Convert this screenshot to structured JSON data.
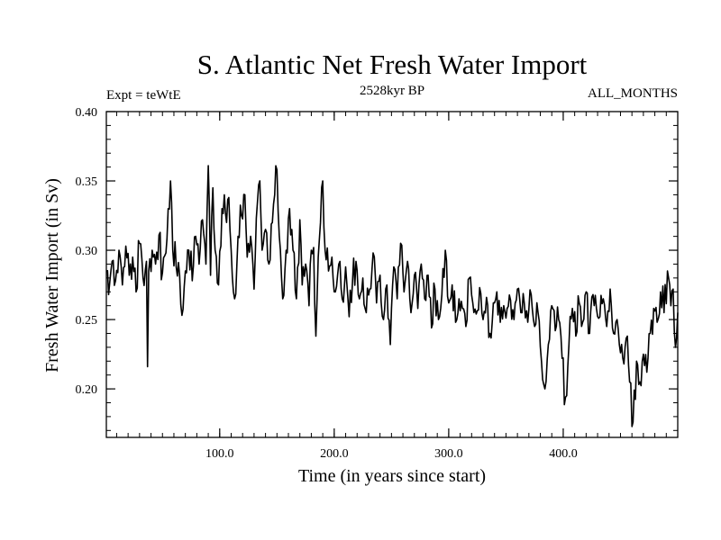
{
  "chart_data": {
    "type": "line",
    "title": "S. Atlantic Net Fresh Water Import",
    "left_note": "Expt = teWtE",
    "subtitle": "2528kyr BP",
    "right_note": "ALL_MONTHS",
    "xlabel": "Time (in years since start)",
    "ylabel": "Fresh Water Import (in Sv)",
    "xlim": [
      1,
      500
    ],
    "ylim": [
      0.165,
      0.4
    ],
    "x_ticks": [
      100,
      200,
      300,
      400
    ],
    "x_tick_labels": [
      "100.0",
      "200.0",
      "300.0",
      "400.0"
    ],
    "y_ticks": [
      0.2,
      0.25,
      0.3,
      0.35,
      0.4
    ],
    "y_tick_labels": [
      "0.20",
      "0.25",
      "0.30",
      "0.35",
      "0.40"
    ],
    "x_minor_step": 10,
    "y_minor_step": 0.01,
    "color": "#000000",
    "series": [
      {
        "name": "S. Atlantic Net Fresh Water Import",
        "x_start": 1,
        "x_step": 1,
        "anchors": [
          [
            1,
            0.285
          ],
          [
            3,
            0.268
          ],
          [
            6,
            0.292
          ],
          [
            9,
            0.278
          ],
          [
            12,
            0.3
          ],
          [
            15,
            0.275
          ],
          [
            18,
            0.303
          ],
          [
            21,
            0.282
          ],
          [
            24,
            0.295
          ],
          [
            27,
            0.27
          ],
          [
            30,
            0.305
          ],
          [
            33,
            0.28
          ],
          [
            36,
            0.292
          ],
          [
            37,
            0.216
          ],
          [
            38,
            0.285
          ],
          [
            41,
            0.3
          ],
          [
            44,
            0.29
          ],
          [
            47,
            0.311
          ],
          [
            50,
            0.284
          ],
          [
            53,
            0.298
          ],
          [
            55,
            0.33
          ],
          [
            57,
            0.35
          ],
          [
            59,
            0.3
          ],
          [
            62,
            0.288
          ],
          [
            65,
            0.282
          ],
          [
            67,
            0.253
          ],
          [
            70,
            0.285
          ],
          [
            73,
            0.3
          ],
          [
            76,
            0.278
          ],
          [
            79,
            0.31
          ],
          [
            82,
            0.29
          ],
          [
            85,
            0.322
          ],
          [
            88,
            0.29
          ],
          [
            90,
            0.361
          ],
          [
            92,
            0.282
          ],
          [
            94,
            0.345
          ],
          [
            96,
            0.3
          ],
          [
            99,
            0.275
          ],
          [
            102,
            0.33
          ],
          [
            104,
            0.34
          ],
          [
            106,
            0.32
          ],
          [
            108,
            0.338
          ],
          [
            110,
            0.3
          ],
          [
            113,
            0.265
          ],
          [
            116,
            0.31
          ],
          [
            119,
            0.325
          ],
          [
            122,
            0.34
          ],
          [
            124,
            0.295
          ],
          [
            127,
            0.31
          ],
          [
            130,
            0.272
          ],
          [
            133,
            0.335
          ],
          [
            135,
            0.35
          ],
          [
            137,
            0.3
          ],
          [
            140,
            0.315
          ],
          [
            143,
            0.29
          ],
          [
            146,
            0.32
          ],
          [
            148,
            0.34
          ],
          [
            150,
            0.358
          ],
          [
            152,
            0.31
          ],
          [
            155,
            0.265
          ],
          [
            158,
            0.3
          ],
          [
            161,
            0.33
          ],
          [
            164,
            0.3
          ],
          [
            167,
            0.265
          ],
          [
            170,
            0.322
          ],
          [
            172,
            0.275
          ],
          [
            175,
            0.29
          ],
          [
            178,
            0.26
          ],
          [
            180,
            0.3
          ],
          [
            182,
            0.302
          ],
          [
            184,
            0.238
          ],
          [
            186,
            0.295
          ],
          [
            188,
            0.32
          ],
          [
            190,
            0.35
          ],
          [
            192,
            0.3
          ],
          [
            195,
            0.285
          ],
          [
            198,
            0.295
          ],
          [
            201,
            0.27
          ],
          [
            204,
            0.29
          ],
          [
            207,
            0.265
          ],
          [
            210,
            0.288
          ],
          [
            213,
            0.252
          ],
          [
            216,
            0.278
          ],
          [
            219,
            0.292
          ],
          [
            222,
            0.265
          ],
          [
            225,
            0.28
          ],
          [
            228,
            0.255
          ],
          [
            231,
            0.272
          ],
          [
            234,
            0.298
          ],
          [
            237,
            0.262
          ],
          [
            240,
            0.282
          ],
          [
            243,
            0.25
          ],
          [
            246,
            0.275
          ],
          [
            249,
            0.232
          ],
          [
            252,
            0.288
          ],
          [
            255,
            0.265
          ],
          [
            258,
            0.305
          ],
          [
            261,
            0.27
          ],
          [
            264,
            0.292
          ],
          [
            267,
            0.255
          ],
          [
            270,
            0.282
          ],
          [
            273,
            0.258
          ],
          [
            276,
            0.29
          ],
          [
            279,
            0.265
          ],
          [
            282,
            0.282
          ],
          [
            285,
            0.244
          ],
          [
            288,
            0.272
          ],
          [
            291,
            0.25
          ],
          [
            294,
            0.268
          ],
          [
            297,
            0.3
          ],
          [
            300,
            0.262
          ],
          [
            303,
            0.275
          ],
          [
            306,
            0.248
          ],
          [
            309,
            0.265
          ],
          [
            312,
            0.258
          ],
          [
            315,
            0.245
          ],
          [
            318,
            0.28
          ],
          [
            321,
            0.262
          ],
          [
            324,
            0.254
          ],
          [
            327,
            0.273
          ],
          [
            330,
            0.25
          ],
          [
            333,
            0.266
          ],
          [
            336,
            0.24
          ],
          [
            339,
            0.262
          ],
          [
            342,
            0.27
          ],
          [
            345,
            0.248
          ],
          [
            348,
            0.26
          ],
          [
            351,
            0.258
          ],
          [
            354,
            0.264
          ],
          [
            357,
            0.25
          ],
          [
            360,
            0.272
          ],
          [
            363,
            0.255
          ],
          [
            366,
            0.262
          ],
          [
            369,
            0.248
          ],
          [
            372,
            0.268
          ],
          [
            375,
            0.245
          ],
          [
            378,
            0.255
          ],
          [
            381,
            0.22
          ],
          [
            384,
            0.2
          ],
          [
            387,
            0.232
          ],
          [
            390,
            0.26
          ],
          [
            393,
            0.242
          ],
          [
            396,
            0.25
          ],
          [
            399,
            0.222
          ],
          [
            402,
            0.194
          ],
          [
            405,
            0.232
          ],
          [
            408,
            0.258
          ],
          [
            411,
            0.238
          ],
          [
            414,
            0.262
          ],
          [
            417,
            0.248
          ],
          [
            420,
            0.27
          ],
          [
            423,
            0.24
          ],
          [
            426,
            0.268
          ],
          [
            429,
            0.258
          ],
          [
            432,
            0.252
          ],
          [
            435,
            0.265
          ],
          [
            438,
            0.245
          ],
          [
            441,
            0.272
          ],
          [
            444,
            0.24
          ],
          [
            447,
            0.25
          ],
          [
            450,
            0.226
          ],
          [
            453,
            0.218
          ],
          [
            456,
            0.238
          ],
          [
            458,
            0.205
          ],
          [
            461,
            0.176
          ],
          [
            464,
            0.22
          ],
          [
            467,
            0.205
          ],
          [
            470,
            0.225
          ],
          [
            473,
            0.212
          ],
          [
            476,
            0.24
          ],
          [
            479,
            0.258
          ],
          [
            482,
            0.248
          ],
          [
            485,
            0.27
          ],
          [
            488,
            0.255
          ],
          [
            491,
            0.285
          ],
          [
            494,
            0.26
          ],
          [
            496,
            0.272
          ],
          [
            498,
            0.23
          ],
          [
            500,
            0.255
          ]
        ]
      }
    ]
  }
}
